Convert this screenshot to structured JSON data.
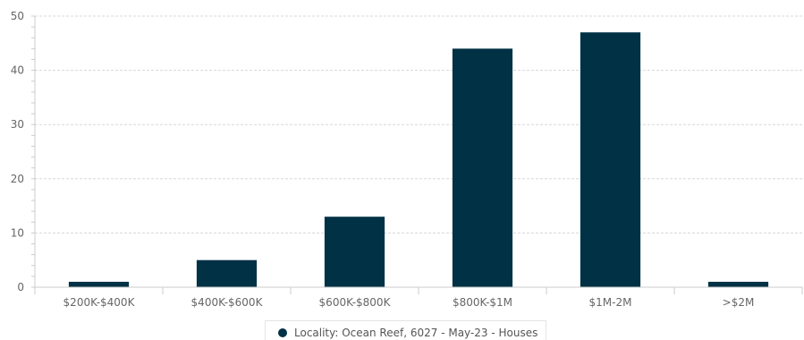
{
  "chart_data": {
    "type": "bar",
    "categories": [
      "$200K-$400K",
      "$400K-$600K",
      "$600K-$800K",
      "$800K-$1M",
      "$1M-2M",
      ">$2M"
    ],
    "series": [
      {
        "name": "Locality: Ocean Reef, 6027 - May-23 - Houses",
        "values": [
          1,
          5,
          13,
          44,
          47,
          1
        ],
        "color": "#003145"
      }
    ],
    "title": "",
    "xlabel": "",
    "ylabel": "",
    "ylim": [
      0,
      50
    ],
    "yticks": [
      0,
      10,
      20,
      30,
      40,
      50
    ],
    "grid": true,
    "legend_position": "bottom"
  }
}
